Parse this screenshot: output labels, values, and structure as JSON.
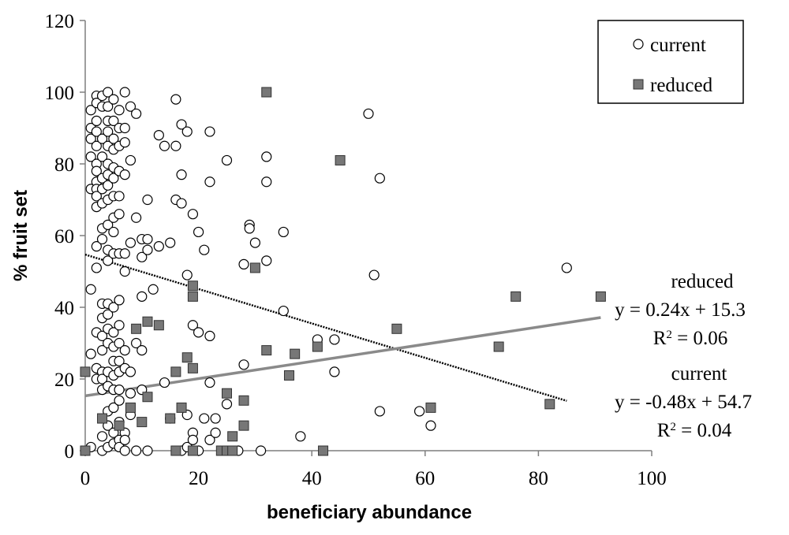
{
  "chart_data": {
    "type": "scatter",
    "xlabel": "beneficiary abundance",
    "ylabel": "% fruit set",
    "xlim": [
      0,
      100
    ],
    "ylim": [
      0,
      120
    ],
    "x_ticks": [
      "0",
      "20",
      "40",
      "60",
      "80",
      "100"
    ],
    "y_ticks": [
      "0",
      "20",
      "40",
      "60",
      "80",
      "100",
      "120"
    ],
    "grid": false,
    "legend": {
      "placement": "top-right",
      "entries": [
        "current",
        "reduced"
      ]
    },
    "series": [
      {
        "name": "current",
        "marker": "open-circle",
        "color": "#000000",
        "points": [
          [
            1,
            45
          ],
          [
            1,
            27
          ],
          [
            1,
            1
          ],
          [
            1,
            87
          ],
          [
            1,
            90
          ],
          [
            1,
            82
          ],
          [
            1,
            95
          ],
          [
            1,
            73
          ],
          [
            2,
            99
          ],
          [
            2,
            97
          ],
          [
            2,
            92
          ],
          [
            2,
            89
          ],
          [
            2,
            85
          ],
          [
            2,
            80
          ],
          [
            2,
            78
          ],
          [
            2,
            75
          ],
          [
            2,
            73
          ],
          [
            2,
            71
          ],
          [
            2,
            68
          ],
          [
            2,
            57
          ],
          [
            2,
            51
          ],
          [
            2,
            33
          ],
          [
            2,
            23
          ],
          [
            2,
            20
          ],
          [
            3,
            99
          ],
          [
            3,
            96
          ],
          [
            3,
            87
          ],
          [
            3,
            82
          ],
          [
            3,
            76
          ],
          [
            3,
            73
          ],
          [
            3,
            69
          ],
          [
            3,
            62
          ],
          [
            3,
            59
          ],
          [
            3,
            41
          ],
          [
            3,
            37
          ],
          [
            3,
            32
          ],
          [
            3,
            28
          ],
          [
            3,
            22
          ],
          [
            3,
            20
          ],
          [
            3,
            17
          ],
          [
            3,
            4
          ],
          [
            3,
            0
          ],
          [
            4,
            100
          ],
          [
            4,
            96
          ],
          [
            4,
            92
          ],
          [
            4,
            89
          ],
          [
            4,
            85
          ],
          [
            4,
            80
          ],
          [
            4,
            77
          ],
          [
            4,
            74
          ],
          [
            4,
            70
          ],
          [
            4,
            63
          ],
          [
            4,
            56
          ],
          [
            4,
            53
          ],
          [
            4,
            41
          ],
          [
            4,
            38
          ],
          [
            4,
            34
          ],
          [
            4,
            30
          ],
          [
            4,
            22
          ],
          [
            4,
            18
          ],
          [
            4,
            11
          ],
          [
            4,
            7
          ],
          [
            4,
            1
          ],
          [
            5,
            98
          ],
          [
            5,
            92
          ],
          [
            5,
            87
          ],
          [
            5,
            84
          ],
          [
            5,
            79
          ],
          [
            5,
            76
          ],
          [
            5,
            71
          ],
          [
            5,
            65
          ],
          [
            5,
            61
          ],
          [
            5,
            55
          ],
          [
            5,
            40
          ],
          [
            5,
            33
          ],
          [
            5,
            29
          ],
          [
            5,
            25
          ],
          [
            5,
            21
          ],
          [
            5,
            17
          ],
          [
            5,
            12
          ],
          [
            5,
            5
          ],
          [
            5,
            2
          ],
          [
            6,
            95
          ],
          [
            6,
            90
          ],
          [
            6,
            85
          ],
          [
            6,
            78
          ],
          [
            6,
            71
          ],
          [
            6,
            66
          ],
          [
            6,
            55
          ],
          [
            6,
            42
          ],
          [
            6,
            35
          ],
          [
            6,
            30
          ],
          [
            6,
            25
          ],
          [
            6,
            22
          ],
          [
            6,
            17
          ],
          [
            6,
            14
          ],
          [
            6,
            8
          ],
          [
            6,
            3
          ],
          [
            6,
            1
          ],
          [
            7,
            100
          ],
          [
            7,
            90
          ],
          [
            7,
            86
          ],
          [
            7,
            77
          ],
          [
            7,
            55
          ],
          [
            7,
            50
          ],
          [
            7,
            28
          ],
          [
            7,
            23
          ],
          [
            7,
            5
          ],
          [
            7,
            3
          ],
          [
            7,
            0
          ],
          [
            8,
            96
          ],
          [
            8,
            81
          ],
          [
            8,
            58
          ],
          [
            8,
            22
          ],
          [
            8,
            16
          ],
          [
            8,
            10
          ],
          [
            9,
            94
          ],
          [
            9,
            65
          ],
          [
            9,
            30
          ],
          [
            9,
            0
          ],
          [
            10,
            59
          ],
          [
            10,
            54
          ],
          [
            10,
            43
          ],
          [
            10,
            28
          ],
          [
            10,
            17
          ],
          [
            11,
            70
          ],
          [
            11,
            59
          ],
          [
            11,
            56
          ],
          [
            11,
            0
          ],
          [
            12,
            45
          ],
          [
            13,
            88
          ],
          [
            13,
            57
          ],
          [
            14,
            85
          ],
          [
            14,
            19
          ],
          [
            15,
            58
          ],
          [
            15,
            9
          ],
          [
            16,
            98
          ],
          [
            16,
            85
          ],
          [
            16,
            70
          ],
          [
            17,
            91
          ],
          [
            17,
            77
          ],
          [
            17,
            69
          ],
          [
            17,
            0
          ],
          [
            18,
            89
          ],
          [
            18,
            49
          ],
          [
            18,
            10
          ],
          [
            18,
            1
          ],
          [
            19,
            66
          ],
          [
            19,
            35
          ],
          [
            19,
            5
          ],
          [
            19,
            3
          ],
          [
            20,
            61
          ],
          [
            20,
            33
          ],
          [
            20,
            0
          ],
          [
            21,
            56
          ],
          [
            21,
            9
          ],
          [
            22,
            89
          ],
          [
            22,
            75
          ],
          [
            22,
            32
          ],
          [
            22,
            19
          ],
          [
            22,
            3
          ],
          [
            23,
            9
          ],
          [
            23,
            5
          ],
          [
            25,
            81
          ],
          [
            25,
            13
          ],
          [
            27,
            0
          ],
          [
            28,
            52
          ],
          [
            28,
            24
          ],
          [
            29,
            63
          ],
          [
            29,
            62
          ],
          [
            30,
            58
          ],
          [
            31,
            0
          ],
          [
            32,
            82
          ],
          [
            32,
            75
          ],
          [
            32,
            53
          ],
          [
            35,
            61
          ],
          [
            35,
            39
          ],
          [
            38,
            4
          ],
          [
            41,
            31
          ],
          [
            44,
            31
          ],
          [
            44,
            22
          ],
          [
            50,
            94
          ],
          [
            51,
            49
          ],
          [
            52,
            76
          ],
          [
            52,
            11
          ],
          [
            59,
            11
          ],
          [
            61,
            7
          ],
          [
            85,
            51
          ]
        ]
      },
      {
        "name": "reduced",
        "marker": "filled-square",
        "color": "#777777",
        "points": [
          [
            0,
            22
          ],
          [
            0,
            0
          ],
          [
            3,
            9
          ],
          [
            6,
            7
          ],
          [
            8,
            12
          ],
          [
            9,
            34
          ],
          [
            10,
            8
          ],
          [
            11,
            36
          ],
          [
            11,
            15
          ],
          [
            13,
            35
          ],
          [
            15,
            9
          ],
          [
            16,
            22
          ],
          [
            16,
            0
          ],
          [
            17,
            12
          ],
          [
            18,
            26
          ],
          [
            19,
            46
          ],
          [
            19,
            43
          ],
          [
            19,
            23
          ],
          [
            19,
            0
          ],
          [
            24,
            0
          ],
          [
            25,
            16
          ],
          [
            25,
            0
          ],
          [
            26,
            4
          ],
          [
            26,
            0
          ],
          [
            28,
            14
          ],
          [
            28,
            7
          ],
          [
            30,
            51
          ],
          [
            32,
            100
          ],
          [
            32,
            28
          ],
          [
            36,
            21
          ],
          [
            37,
            27
          ],
          [
            41,
            29
          ],
          [
            42,
            0
          ],
          [
            45,
            81
          ],
          [
            55,
            34
          ],
          [
            61,
            12
          ],
          [
            73,
            29
          ],
          [
            76,
            43
          ],
          [
            82,
            13
          ],
          [
            91,
            43
          ]
        ]
      }
    ],
    "trendlines": [
      {
        "series": "current",
        "style": "dotted",
        "color": "#000000",
        "slope": -0.48,
        "intercept": 54.7,
        "x_range": [
          0,
          85
        ]
      },
      {
        "series": "reduced",
        "style": "solid",
        "color": "#8a8a8a",
        "slope": 0.24,
        "intercept": 15.3,
        "x_range": [
          0,
          91
        ]
      }
    ],
    "annotations": {
      "reduced": {
        "name": "reduced",
        "equation": "y = 0.24x + 15.3",
        "r2_prefix": "R",
        "r2_value": " = 0.06"
      },
      "current": {
        "name": "current",
        "equation": "y = -0.48x + 54.7",
        "r2_prefix": "R",
        "r2_value": " = 0.04"
      },
      "r2_sup": "2"
    }
  }
}
